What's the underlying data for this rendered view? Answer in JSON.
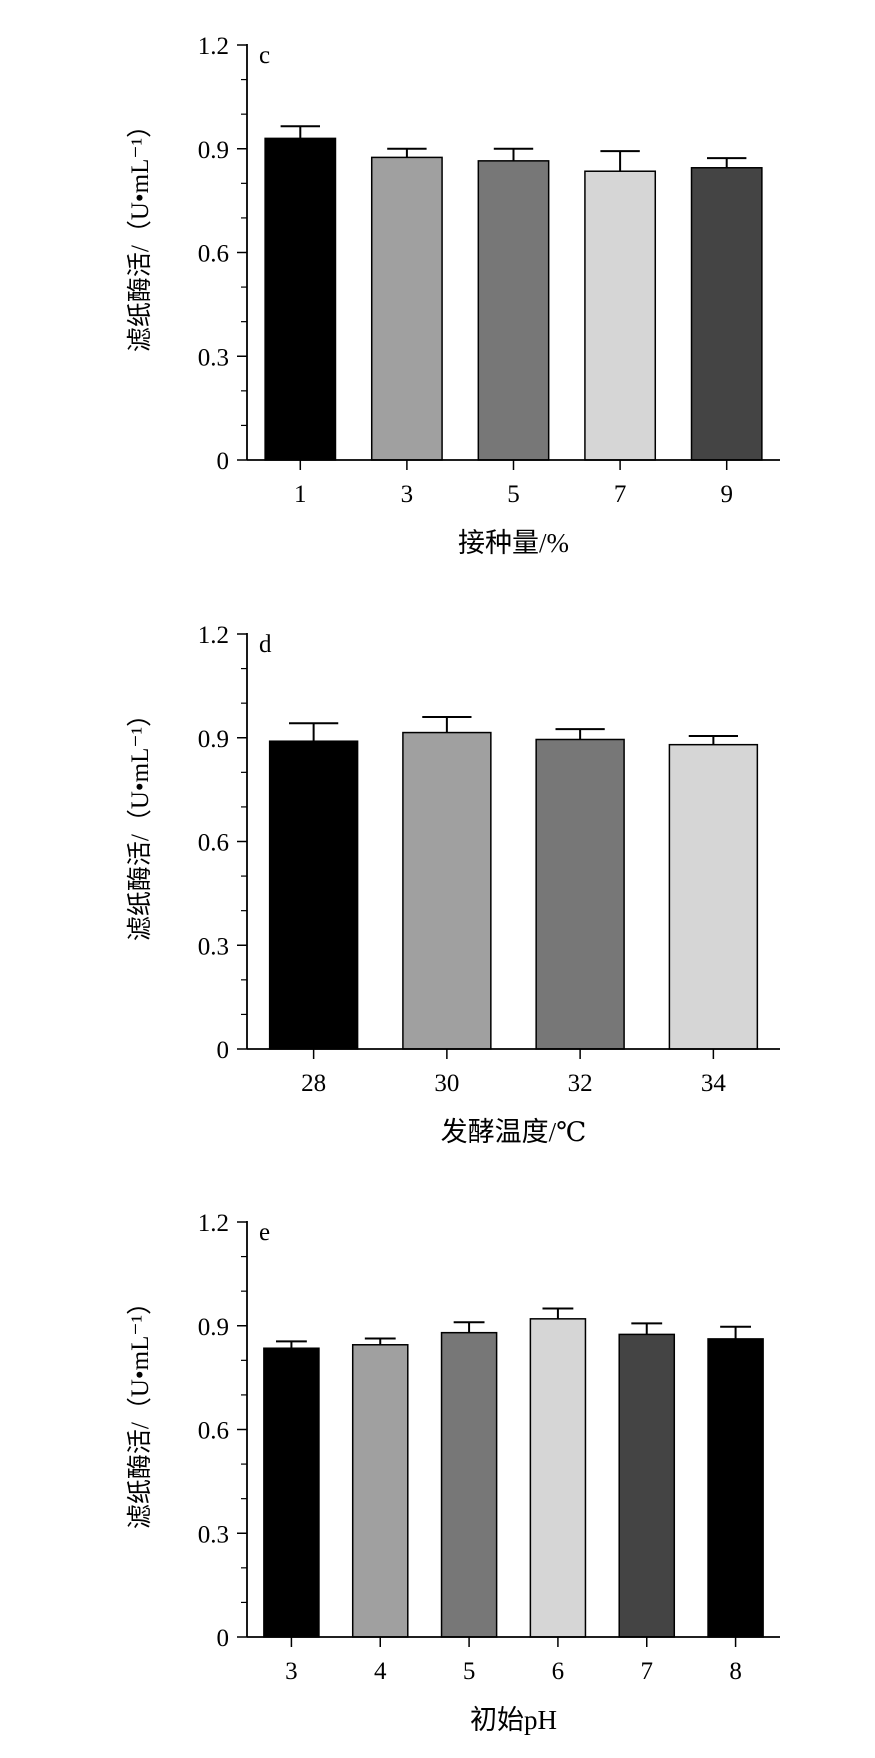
{
  "chart_data": [
    {
      "type": "bar",
      "panel_label": "c",
      "xlabel": "接种量/%",
      "ylabel": "滤纸酶活/（U•mL⁻¹）",
      "ylim": [
        0,
        1.2
      ],
      "yticks": [
        "0",
        "0.3",
        "0.6",
        "0.9",
        "1.2"
      ],
      "grid": false,
      "categories": [
        "1",
        "3",
        "5",
        "7",
        "9"
      ],
      "values": [
        0.93,
        0.875,
        0.865,
        0.835,
        0.845
      ],
      "errors": [
        0.035,
        0.025,
        0.035,
        0.058,
        0.028
      ],
      "colors": [
        "#000000",
        "#a0a0a0",
        "#777777",
        "#d6d6d6",
        "#444444"
      ]
    },
    {
      "type": "bar",
      "panel_label": "d",
      "xlabel": "发酵温度/℃",
      "ylabel": "滤纸酶活/（U•mL⁻¹）",
      "ylim": [
        0,
        1.2
      ],
      "yticks": [
        "0",
        "0.3",
        "0.6",
        "0.9",
        "1.2"
      ],
      "grid": false,
      "categories": [
        "28",
        "30",
        "32",
        "34"
      ],
      "values": [
        0.89,
        0.915,
        0.895,
        0.88
      ],
      "errors": [
        0.052,
        0.045,
        0.03,
        0.025
      ],
      "colors": [
        "#000000",
        "#a0a0a0",
        "#777777",
        "#d6d6d6"
      ]
    },
    {
      "type": "bar",
      "panel_label": "e",
      "xlabel": "初始pH",
      "ylabel": "滤纸酶活/（U•mL⁻¹）",
      "ylim": [
        0,
        1.2
      ],
      "yticks": [
        "0",
        "0.3",
        "0.6",
        "0.9",
        "1.2"
      ],
      "grid": false,
      "categories": [
        "3",
        "4",
        "5",
        "6",
        "7",
        "8"
      ],
      "values": [
        0.835,
        0.845,
        0.88,
        0.92,
        0.875,
        0.862
      ],
      "errors": [
        0.02,
        0.018,
        0.03,
        0.03,
        0.032,
        0.035
      ],
      "colors": [
        "#000000",
        "#a0a0a0",
        "#777777",
        "#d6d6d6",
        "#444444",
        "#000000"
      ]
    }
  ]
}
